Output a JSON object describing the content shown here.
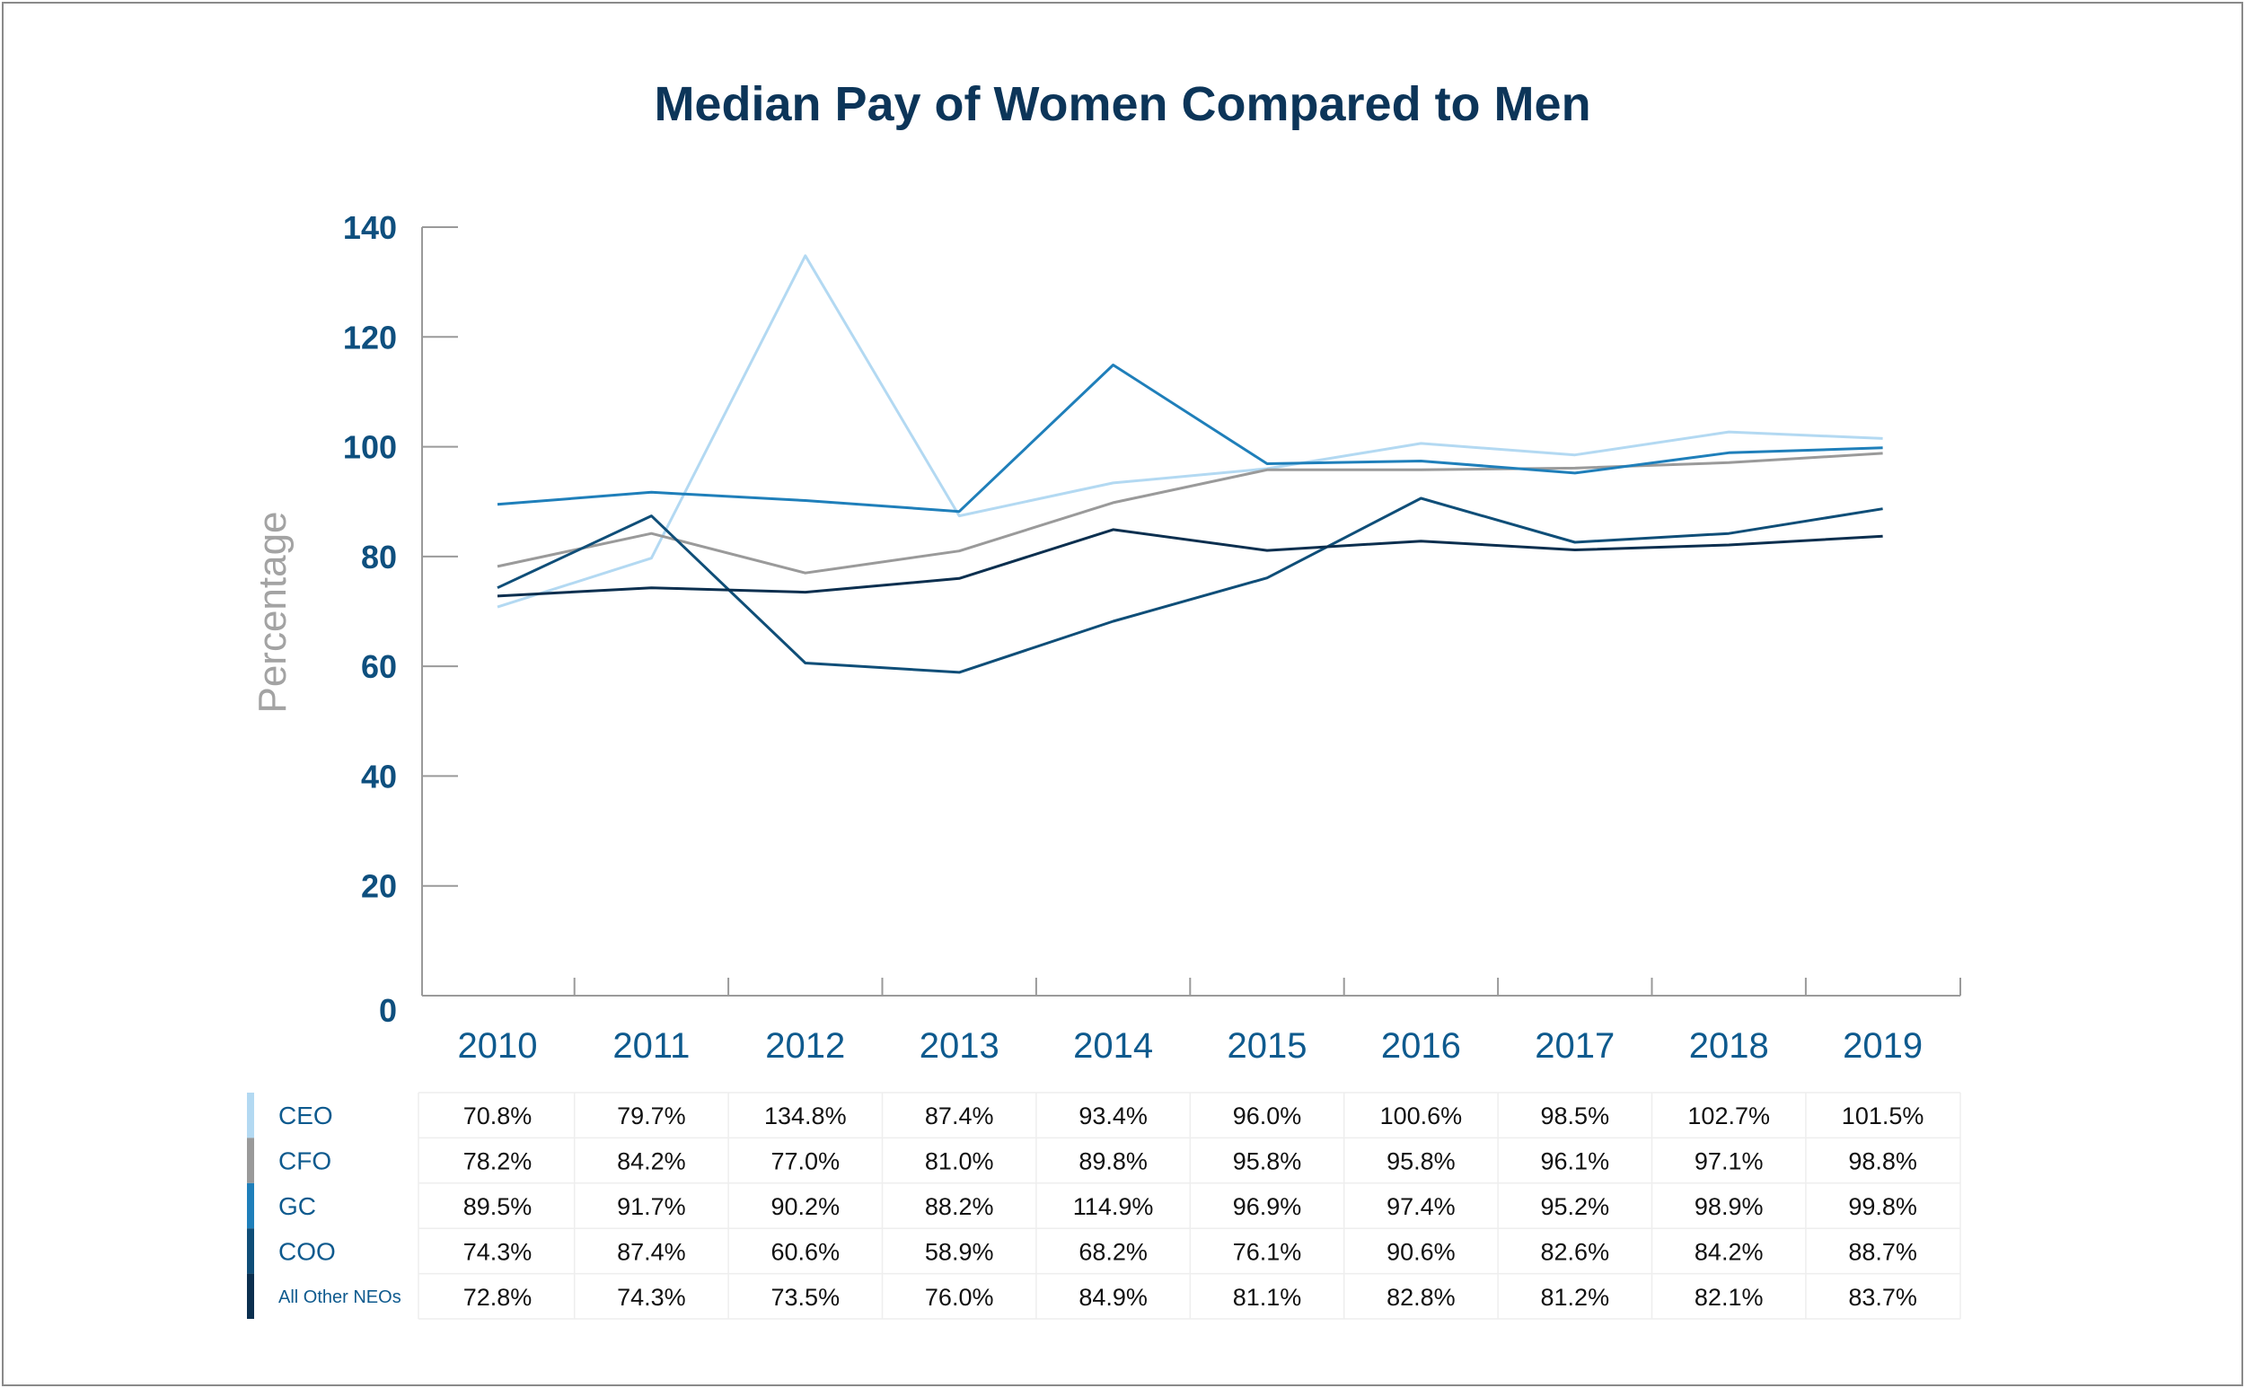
{
  "chart_data": {
    "type": "line",
    "title": "Median Pay of Women Compared to Men",
    "ylabel": "Percentage",
    "xlabel": "",
    "x": [
      "2010",
      "2011",
      "2012",
      "2013",
      "2014",
      "2015",
      "2016",
      "2017",
      "2018",
      "2019"
    ],
    "ylim": [
      0,
      140
    ],
    "yticks": [
      0,
      20,
      40,
      60,
      80,
      100,
      120,
      140
    ],
    "grid": false,
    "legend": "table-below",
    "series": [
      {
        "name": "CEO",
        "color": "#b3d9f2",
        "values": [
          70.8,
          79.7,
          134.8,
          87.4,
          93.4,
          96.0,
          100.6,
          98.5,
          102.7,
          101.5
        ],
        "labels": [
          "70.8%",
          "79.7%",
          "134.8%",
          "87.4%",
          "93.4%",
          "96.0%",
          "100.6%",
          "98.5%",
          "102.7%",
          "101.5%"
        ]
      },
      {
        "name": "CFO",
        "color": "#9a9a9a",
        "values": [
          78.2,
          84.2,
          77.0,
          81.0,
          89.8,
          95.8,
          95.8,
          96.1,
          97.1,
          98.8
        ],
        "labels": [
          "78.2%",
          "84.2%",
          "77.0%",
          "81.0%",
          "89.8%",
          "95.8%",
          "95.8%",
          "96.1%",
          "97.1%",
          "98.8%"
        ]
      },
      {
        "name": "GC",
        "color": "#1f7fba",
        "values": [
          89.5,
          91.7,
          90.2,
          88.2,
          114.9,
          96.9,
          97.4,
          95.2,
          98.9,
          99.8
        ],
        "labels": [
          "89.5%",
          "91.7%",
          "90.2%",
          "88.2%",
          "114.9%",
          "96.9%",
          "97.4%",
          "95.2%",
          "98.9%",
          "99.8%"
        ]
      },
      {
        "name": "COO",
        "color": "#0f4e78",
        "values": [
          74.3,
          87.4,
          60.6,
          58.9,
          68.2,
          76.1,
          90.6,
          82.6,
          84.2,
          88.7
        ],
        "labels": [
          "74.3%",
          "87.4%",
          "60.6%",
          "58.9%",
          "68.2%",
          "76.1%",
          "90.6%",
          "82.6%",
          "84.2%",
          "88.7%"
        ]
      },
      {
        "name": "All Other NEOs",
        "color": "#0b2f4f",
        "values": [
          72.8,
          74.3,
          73.5,
          76.0,
          84.9,
          81.1,
          82.8,
          81.2,
          82.1,
          83.7
        ],
        "labels": [
          "72.8%",
          "74.3%",
          "73.5%",
          "76.0%",
          "84.9%",
          "81.1%",
          "82.8%",
          "81.2%",
          "82.1%",
          "83.7%"
        ]
      }
    ]
  }
}
